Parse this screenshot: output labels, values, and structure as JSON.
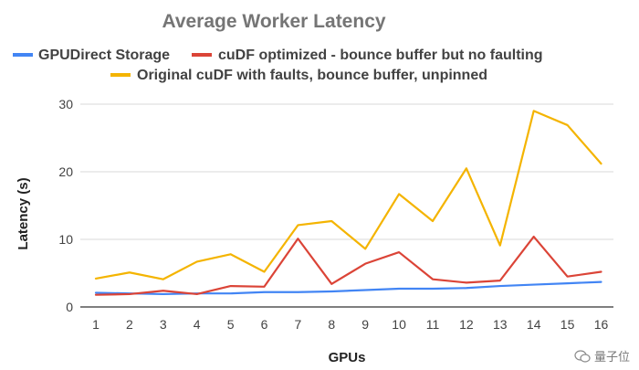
{
  "chart_data": {
    "type": "line",
    "title": "Average Worker Latency",
    "xlabel": "GPUs",
    "ylabel": "Latency (s)",
    "categories": [
      "1",
      "2",
      "3",
      "4",
      "5",
      "6",
      "7",
      "8",
      "9",
      "10",
      "11",
      "12",
      "13",
      "14",
      "15",
      "16"
    ],
    "ylim": [
      0,
      30
    ],
    "yticks": [
      0,
      10,
      20,
      30
    ],
    "grid": true,
    "legend_position": "top",
    "series": [
      {
        "name": "GPUDirect Storage",
        "color": "#4285f4",
        "values": [
          2.1,
          2.0,
          1.9,
          2.0,
          2.0,
          2.2,
          2.2,
          2.3,
          2.5,
          2.7,
          2.7,
          2.8,
          3.1,
          3.3,
          3.5,
          3.7
        ]
      },
      {
        "name": "cuDF optimized - bounce buffer but no faulting",
        "color": "#db4437",
        "values": [
          1.8,
          1.9,
          2.4,
          1.9,
          3.1,
          3.0,
          10.1,
          3.4,
          6.4,
          8.1,
          4.1,
          3.6,
          3.9,
          10.4,
          4.5,
          5.2
        ]
      },
      {
        "name": "Original cuDF with faults, bounce buffer, unpinned",
        "color": "#f4b400",
        "values": [
          4.2,
          5.1,
          4.1,
          6.7,
          7.8,
          5.2,
          12.1,
          12.7,
          8.6,
          16.7,
          12.7,
          20.5,
          9.1,
          29.0,
          26.9,
          21.2
        ]
      }
    ]
  },
  "watermark": {
    "icon": "wechat-icon",
    "text": "量子位"
  }
}
